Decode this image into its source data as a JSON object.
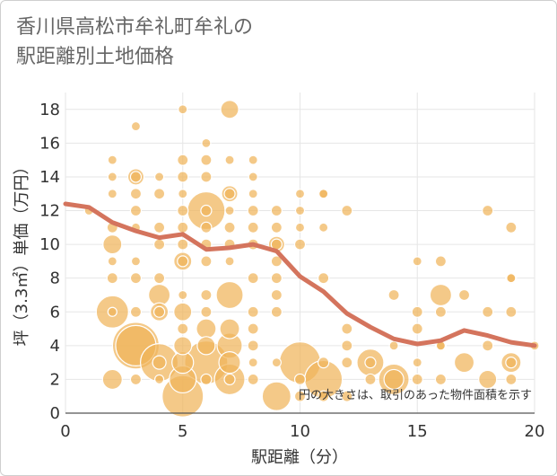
{
  "title_lines": [
    "香川県高松市牟礼町牟礼の",
    "駅距離別土地価格"
  ],
  "chart_data": {
    "type": "scatter",
    "title": "香川県高松市牟礼町牟礼の駅距離別土地価格",
    "xlabel": "駅距離（分）",
    "ylabel": "坪（3.3㎡）単価（万円）",
    "xlim": [
      0,
      20
    ],
    "ylim": [
      0,
      19
    ],
    "x_ticks": [
      0,
      5,
      10,
      15,
      20
    ],
    "y_ticks": [
      0,
      2,
      4,
      6,
      8,
      10,
      12,
      14,
      16,
      18
    ],
    "grid": true,
    "note": "円の大きさは、取引のあった物件面積を示す",
    "colors": {
      "bubble_fill": "#f0b45a",
      "bubble_edge": "#ffffff",
      "line": "#d4745d",
      "grid": "#e6e6e6"
    },
    "points": [
      {
        "x": 1,
        "y": 12,
        "r": 1
      },
      {
        "x": 2,
        "y": 15,
        "r": 1
      },
      {
        "x": 2,
        "y": 14,
        "r": 1
      },
      {
        "x": 2,
        "y": 13,
        "r": 1
      },
      {
        "x": 2,
        "y": 11,
        "r": 1.2
      },
      {
        "x": 2,
        "y": 10,
        "r": 2.1
      },
      {
        "x": 2,
        "y": 9,
        "r": 1
      },
      {
        "x": 2,
        "y": 8,
        "r": 1.2
      },
      {
        "x": 2,
        "y": 6,
        "r": 3.6
      },
      {
        "x": 2,
        "y": 6,
        "r": 1
      },
      {
        "x": 2,
        "y": 2,
        "r": 2.2
      },
      {
        "x": 3,
        "y": 17,
        "r": 1
      },
      {
        "x": 3,
        "y": 14,
        "r": 1.8
      },
      {
        "x": 3,
        "y": 14,
        "r": 1.2
      },
      {
        "x": 3,
        "y": 13,
        "r": 1.2
      },
      {
        "x": 3,
        "y": 12,
        "r": 1.2
      },
      {
        "x": 3,
        "y": 11,
        "r": 1
      },
      {
        "x": 3,
        "y": 9,
        "r": 1
      },
      {
        "x": 3,
        "y": 8,
        "r": 1.2
      },
      {
        "x": 3,
        "y": 6,
        "r": 1.2
      },
      {
        "x": 3,
        "y": 4,
        "r": 5.2
      },
      {
        "x": 3,
        "y": 4,
        "r": 4.5
      },
      {
        "x": 3,
        "y": 2,
        "r": 1.2
      },
      {
        "x": 4,
        "y": 14,
        "r": 1
      },
      {
        "x": 4,
        "y": 13,
        "r": 1.2
      },
      {
        "x": 4,
        "y": 11,
        "r": 1.2
      },
      {
        "x": 4,
        "y": 10,
        "r": 1.2
      },
      {
        "x": 4,
        "y": 8,
        "r": 1.2
      },
      {
        "x": 4,
        "y": 7,
        "r": 2.4
      },
      {
        "x": 4,
        "y": 6,
        "r": 2
      },
      {
        "x": 4,
        "y": 6,
        "r": 1.2
      },
      {
        "x": 4,
        "y": 3,
        "r": 4.2
      },
      {
        "x": 4,
        "y": 3,
        "r": 1.5
      },
      {
        "x": 4,
        "y": 2,
        "r": 1
      },
      {
        "x": 5,
        "y": 18,
        "r": 1
      },
      {
        "x": 5,
        "y": 15,
        "r": 1.2
      },
      {
        "x": 5,
        "y": 14,
        "r": 1.2
      },
      {
        "x": 5,
        "y": 13,
        "r": 1
      },
      {
        "x": 5,
        "y": 12,
        "r": 1.2
      },
      {
        "x": 5,
        "y": 11,
        "r": 1.2
      },
      {
        "x": 5,
        "y": 10,
        "r": 1.2
      },
      {
        "x": 5,
        "y": 9,
        "r": 2
      },
      {
        "x": 5,
        "y": 9,
        "r": 1.2
      },
      {
        "x": 5,
        "y": 7,
        "r": 1
      },
      {
        "x": 5,
        "y": 6,
        "r": 2
      },
      {
        "x": 5,
        "y": 5,
        "r": 1.2
      },
      {
        "x": 5,
        "y": 4,
        "r": 2
      },
      {
        "x": 5,
        "y": 3,
        "r": 2.4
      },
      {
        "x": 5,
        "y": 2,
        "r": 3
      },
      {
        "x": 5,
        "y": 1,
        "r": 4.6
      },
      {
        "x": 6,
        "y": 16,
        "r": 1
      },
      {
        "x": 6,
        "y": 15,
        "r": 1.2
      },
      {
        "x": 6,
        "y": 14,
        "r": 1.2
      },
      {
        "x": 6,
        "y": 12,
        "r": 4.2
      },
      {
        "x": 6,
        "y": 12,
        "r": 1.2
      },
      {
        "x": 6,
        "y": 11,
        "r": 1.2
      },
      {
        "x": 6,
        "y": 10,
        "r": 1.2
      },
      {
        "x": 6,
        "y": 9,
        "r": 1.2
      },
      {
        "x": 6,
        "y": 7,
        "r": 1.2
      },
      {
        "x": 6,
        "y": 6,
        "r": 1.2
      },
      {
        "x": 6,
        "y": 5,
        "r": 2.2
      },
      {
        "x": 6,
        "y": 4,
        "r": 2
      },
      {
        "x": 6,
        "y": 3,
        "r": 4.8
      },
      {
        "x": 6,
        "y": 2,
        "r": 1.2
      },
      {
        "x": 7,
        "y": 18,
        "r": 2
      },
      {
        "x": 7,
        "y": 15,
        "r": 1
      },
      {
        "x": 7,
        "y": 13,
        "r": 1.8
      },
      {
        "x": 7,
        "y": 13,
        "r": 1.2
      },
      {
        "x": 7,
        "y": 12,
        "r": 1
      },
      {
        "x": 7,
        "y": 11,
        "r": 1.2
      },
      {
        "x": 7,
        "y": 10,
        "r": 1.2
      },
      {
        "x": 7,
        "y": 9,
        "r": 1
      },
      {
        "x": 7,
        "y": 7,
        "r": 3
      },
      {
        "x": 7,
        "y": 5,
        "r": 2.2
      },
      {
        "x": 7,
        "y": 4,
        "r": 2.8
      },
      {
        "x": 7,
        "y": 3,
        "r": 2.4
      },
      {
        "x": 7,
        "y": 2,
        "r": 3.4
      },
      {
        "x": 7,
        "y": 2,
        "r": 1.2
      },
      {
        "x": 8,
        "y": 15,
        "r": 1
      },
      {
        "x": 8,
        "y": 14,
        "r": 1
      },
      {
        "x": 8,
        "y": 13,
        "r": 1
      },
      {
        "x": 8,
        "y": 12,
        "r": 1.2
      },
      {
        "x": 8,
        "y": 11,
        "r": 1.2
      },
      {
        "x": 8,
        "y": 10,
        "r": 1.2
      },
      {
        "x": 8,
        "y": 8,
        "r": 1.2
      },
      {
        "x": 8,
        "y": 6,
        "r": 1.2
      },
      {
        "x": 8,
        "y": 5,
        "r": 1.2
      },
      {
        "x": 8,
        "y": 4,
        "r": 1.2
      },
      {
        "x": 8,
        "y": 3,
        "r": 1
      },
      {
        "x": 8,
        "y": 2,
        "r": 1.2
      },
      {
        "x": 9,
        "y": 12,
        "r": 1.2
      },
      {
        "x": 9,
        "y": 11,
        "r": 1.2
      },
      {
        "x": 9,
        "y": 10,
        "r": 1.8
      },
      {
        "x": 9,
        "y": 10,
        "r": 1.2
      },
      {
        "x": 9,
        "y": 9,
        "r": 1.2
      },
      {
        "x": 9,
        "y": 8,
        "r": 1.2
      },
      {
        "x": 9,
        "y": 7,
        "r": 1.2
      },
      {
        "x": 9,
        "y": 6,
        "r": 1.2
      },
      {
        "x": 9,
        "y": 3,
        "r": 1
      },
      {
        "x": 9,
        "y": 1,
        "r": 3.2
      },
      {
        "x": 10,
        "y": 13,
        "r": 1
      },
      {
        "x": 10,
        "y": 12,
        "r": 1
      },
      {
        "x": 10,
        "y": 11,
        "r": 1
      },
      {
        "x": 10,
        "y": 10,
        "r": 1.2
      },
      {
        "x": 10,
        "y": 3,
        "r": 4.6
      },
      {
        "x": 10,
        "y": 2,
        "r": 1.2
      },
      {
        "x": 10,
        "y": 1,
        "r": 1.2
      },
      {
        "x": 11,
        "y": 13,
        "r": 1
      },
      {
        "x": 11,
        "y": 13,
        "r": 1.2
      },
      {
        "x": 11,
        "y": 11,
        "r": 1
      },
      {
        "x": 11,
        "y": 8,
        "r": 1.2
      },
      {
        "x": 11,
        "y": 3,
        "r": 1.2
      },
      {
        "x": 11,
        "y": 2,
        "r": 4.2
      },
      {
        "x": 11,
        "y": 1,
        "r": 1.2
      },
      {
        "x": 12,
        "y": 12,
        "r": 1.2
      },
      {
        "x": 12,
        "y": 5,
        "r": 1.2
      },
      {
        "x": 12,
        "y": 4,
        "r": 1.2
      },
      {
        "x": 12,
        "y": 3,
        "r": 1.2
      },
      {
        "x": 12,
        "y": 1,
        "r": 1.2
      },
      {
        "x": 13,
        "y": 3,
        "r": 3
      },
      {
        "x": 13,
        "y": 3,
        "r": 1.2
      },
      {
        "x": 13,
        "y": 2,
        "r": 1.2
      },
      {
        "x": 14,
        "y": 7,
        "r": 1.2
      },
      {
        "x": 14,
        "y": 4,
        "r": 1
      },
      {
        "x": 14,
        "y": 2,
        "r": 3.4
      },
      {
        "x": 14,
        "y": 2,
        "r": 2.2
      },
      {
        "x": 15,
        "y": 9,
        "r": 1
      },
      {
        "x": 15,
        "y": 6,
        "r": 1.2
      },
      {
        "x": 15,
        "y": 5,
        "r": 1.2
      },
      {
        "x": 15,
        "y": 3,
        "r": 1
      },
      {
        "x": 15,
        "y": 2,
        "r": 1.2
      },
      {
        "x": 16,
        "y": 9,
        "r": 1.2
      },
      {
        "x": 16,
        "y": 7,
        "r": 2.4
      },
      {
        "x": 16,
        "y": 6,
        "r": 1.2
      },
      {
        "x": 16,
        "y": 4,
        "r": 1.2
      },
      {
        "x": 16,
        "y": 4,
        "r": 1
      },
      {
        "x": 16,
        "y": 2,
        "r": 1.2
      },
      {
        "x": 17,
        "y": 7,
        "r": 1.2
      },
      {
        "x": 17,
        "y": 3,
        "r": 2.2
      },
      {
        "x": 18,
        "y": 12,
        "r": 1.2
      },
      {
        "x": 18,
        "y": 6,
        "r": 1.2
      },
      {
        "x": 18,
        "y": 4,
        "r": 1.2
      },
      {
        "x": 18,
        "y": 2,
        "r": 2
      },
      {
        "x": 19,
        "y": 11,
        "r": 1.2
      },
      {
        "x": 19,
        "y": 8,
        "r": 1.2
      },
      {
        "x": 19,
        "y": 8,
        "r": 1
      },
      {
        "x": 19,
        "y": 6,
        "r": 1.2
      },
      {
        "x": 19,
        "y": 3,
        "r": 2.2
      },
      {
        "x": 19,
        "y": 3,
        "r": 1.2
      },
      {
        "x": 19,
        "y": 2,
        "r": 1.2
      },
      {
        "x": 20,
        "y": 4,
        "r": 1
      }
    ],
    "trend": {
      "x": [
        0,
        1,
        2,
        3,
        4,
        5,
        6,
        7,
        8,
        9,
        10,
        11,
        12,
        13,
        14,
        15,
        16,
        17,
        18,
        19,
        20
      ],
      "y": [
        12.4,
        12.2,
        11.3,
        10.8,
        10.4,
        10.6,
        9.7,
        9.8,
        10.0,
        9.6,
        8.1,
        7.2,
        5.9,
        5.1,
        4.4,
        4.1,
        4.3,
        4.9,
        4.6,
        4.2,
        4.0
      ]
    }
  }
}
